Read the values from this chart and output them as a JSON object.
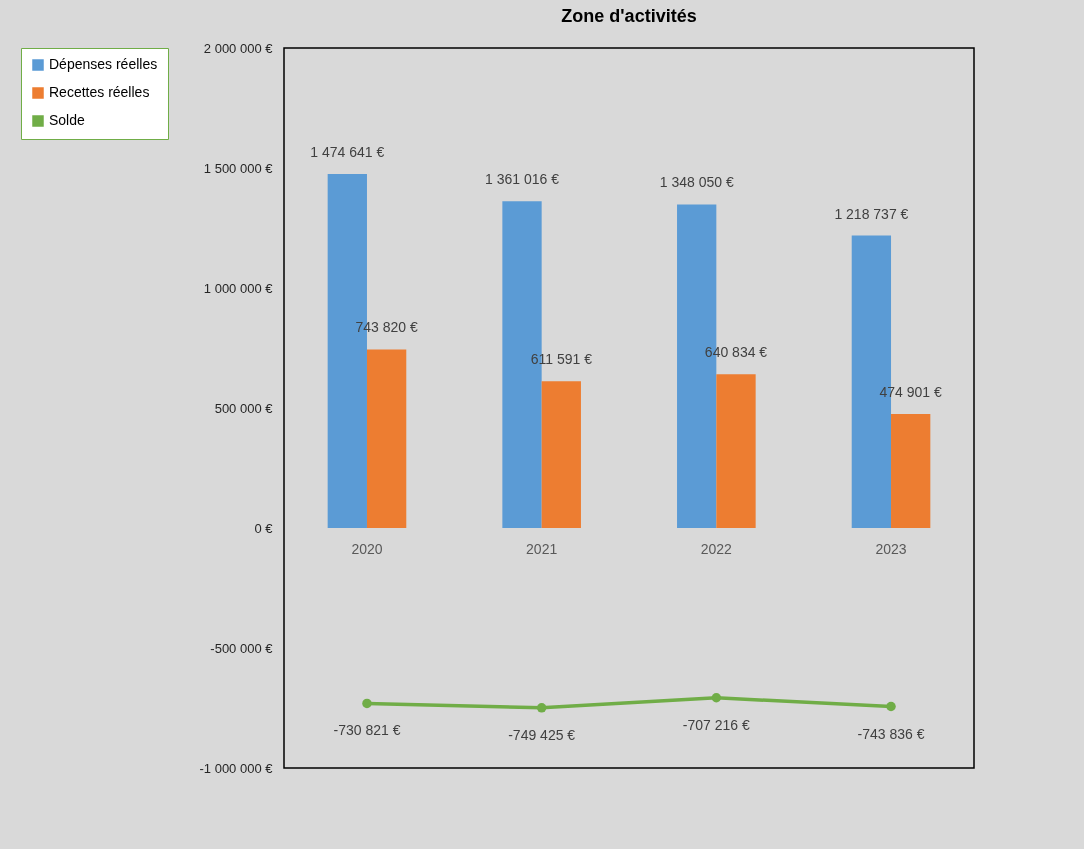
{
  "chart_data": {
    "type": "bar",
    "title": "Zone d'activités",
    "categories": [
      "2020",
      "2021",
      "2022",
      "2023"
    ],
    "series": [
      {
        "name": "Dépenses réelles",
        "color": "#5b9bd5",
        "values": [
          1474641,
          1361016,
          1348050,
          1218737
        ],
        "value_labels": [
          "1 474 641 €",
          "1 361 016 €",
          "1 348 050 €",
          "1 218 737 €"
        ]
      },
      {
        "name": "Recettes réelles",
        "color": "#ed7d31",
        "values": [
          743820,
          611591,
          640834,
          474901
        ],
        "value_labels": [
          "743 820 €",
          "611 591 €",
          "640 834 €",
          "474 901 €"
        ]
      },
      {
        "name": "Solde",
        "type": "line",
        "color": "#70ad47",
        "values": [
          -730821,
          -749425,
          -707216,
          -743836
        ],
        "value_labels": [
          "-730 821 €",
          "-749 425 €",
          "-707 216 €",
          "-743 836 €"
        ]
      }
    ],
    "ylim": [
      -1000000,
      2000000
    ],
    "yticks": [
      {
        "value": -1000000,
        "label": "-1 000 000 €"
      },
      {
        "value": -500000,
        "label": "-500 000 €"
      },
      {
        "value": 0,
        "label": "0 €"
      },
      {
        "value": 500000,
        "label": "500 000 €"
      },
      {
        "value": 1000000,
        "label": "1 000 000 €"
      },
      {
        "value": 1500000,
        "label": "1 500 000 €"
      },
      {
        "value": 2000000,
        "label": "2 000 000 €"
      }
    ],
    "legend": "left",
    "marker": "circle"
  }
}
